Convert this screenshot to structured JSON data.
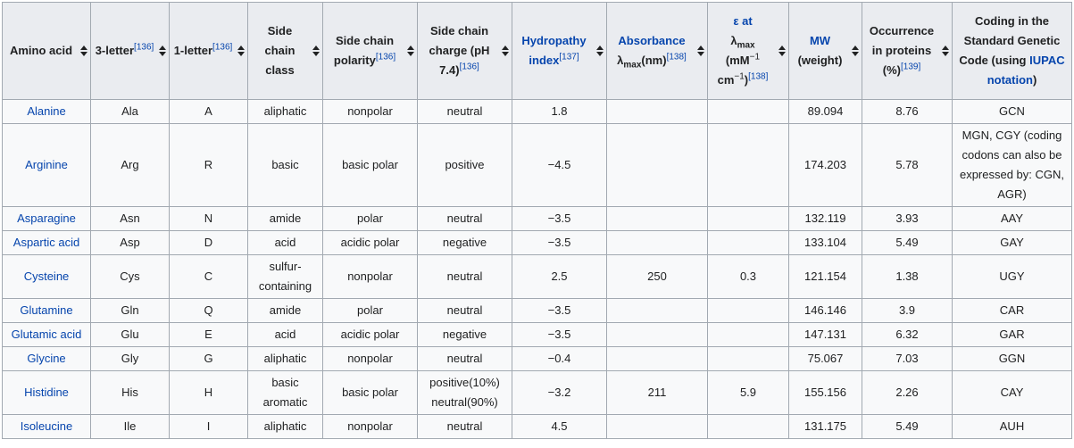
{
  "headers": {
    "amino_acid": "Amino acid",
    "three_letter": "3-letter",
    "three_letter_ref": "[136]",
    "one_letter": "1-letter",
    "one_letter_ref": "[136]",
    "side_chain_class": "Side chain class",
    "side_chain_polarity": "Side chain polarity",
    "side_chain_polarity_ref": "[136]",
    "side_chain_charge": "Side chain charge (pH 7.4)",
    "side_chain_charge_ref": "[136]",
    "hydropathy": "Hydropathy index",
    "hydropathy_ref": "[137]",
    "absorbance": "Absorbance",
    "absorbance_lambda": "λ",
    "absorbance_sub": "max",
    "absorbance_unit": "(nm)",
    "absorbance_ref": "[138]",
    "epsilon_at": "ε at",
    "epsilon_lambda": "λ",
    "epsilon_sub": "max",
    "epsilon_unit_a": "(mM",
    "epsilon_sup_a": "−1",
    "epsilon_unit_b": "cm",
    "epsilon_sup_b": "−1",
    "epsilon_unit_c": ")",
    "epsilon_ref": "[138]",
    "mw": "MW",
    "mw_sub": "(weight)",
    "occurrence": "Occurrence in proteins (%)",
    "occurrence_ref": "[139]",
    "coding_prefix": "Coding in the Standard Genetic Code (using",
    "coding_link": "IUPAC notation",
    "coding_suffix": ")"
  },
  "rows": [
    {
      "name": "Alanine",
      "three": "Ala",
      "one": "A",
      "class": "aliphatic",
      "polarity": "nonpolar",
      "charge": "neutral",
      "hydropathy": "1.8",
      "abs": "",
      "eps": "",
      "mw": "89.094",
      "occ": "8.76",
      "coding": "GCN"
    },
    {
      "name": "Arginine",
      "three": "Arg",
      "one": "R",
      "class": "basic",
      "polarity": "basic polar",
      "charge": "positive",
      "hydropathy": "−4.5",
      "abs": "",
      "eps": "",
      "mw": "174.203",
      "occ": "5.78",
      "coding": "MGN, CGY (coding codons can also be expressed by: CGN, AGR)"
    },
    {
      "name": "Asparagine",
      "three": "Asn",
      "one": "N",
      "class": "amide",
      "polarity": "polar",
      "charge": "neutral",
      "hydropathy": "−3.5",
      "abs": "",
      "eps": "",
      "mw": "132.119",
      "occ": "3.93",
      "coding": "AAY"
    },
    {
      "name": "Aspartic acid",
      "three": "Asp",
      "one": "D",
      "class": "acid",
      "polarity": "acidic polar",
      "charge": "negative",
      "hydropathy": "−3.5",
      "abs": "",
      "eps": "",
      "mw": "133.104",
      "occ": "5.49",
      "coding": "GAY"
    },
    {
      "name": "Cysteine",
      "three": "Cys",
      "one": "C",
      "class": "sulfur-containing",
      "polarity": "nonpolar",
      "charge": "neutral",
      "hydropathy": "2.5",
      "abs": "250",
      "eps": "0.3",
      "mw": "121.154",
      "occ": "1.38",
      "coding": "UGY"
    },
    {
      "name": "Glutamine",
      "three": "Gln",
      "one": "Q",
      "class": "amide",
      "polarity": "polar",
      "charge": "neutral",
      "hydropathy": "−3.5",
      "abs": "",
      "eps": "",
      "mw": "146.146",
      "occ": "3.9",
      "coding": "CAR"
    },
    {
      "name": "Glutamic acid",
      "three": "Glu",
      "one": "E",
      "class": "acid",
      "polarity": "acidic polar",
      "charge": "negative",
      "hydropathy": "−3.5",
      "abs": "",
      "eps": "",
      "mw": "147.131",
      "occ": "6.32",
      "coding": "GAR"
    },
    {
      "name": "Glycine",
      "three": "Gly",
      "one": "G",
      "class": "aliphatic",
      "polarity": "nonpolar",
      "charge": "neutral",
      "hydropathy": "−0.4",
      "abs": "",
      "eps": "",
      "mw": "75.067",
      "occ": "7.03",
      "coding": "GGN"
    },
    {
      "name": "Histidine",
      "three": "His",
      "one": "H",
      "class": "basic aromatic",
      "polarity": "basic polar",
      "charge": "positive(10%) neutral(90%)",
      "hydropathy": "−3.2",
      "abs": "211",
      "eps": "5.9",
      "mw": "155.156",
      "occ": "2.26",
      "coding": "CAY"
    },
    {
      "name": "Isoleucine",
      "three": "Ile",
      "one": "I",
      "class": "aliphatic",
      "polarity": "nonpolar",
      "charge": "neutral",
      "hydropathy": "4.5",
      "abs": "",
      "eps": "",
      "mw": "131.175",
      "occ": "5.49",
      "coding": "AUH"
    }
  ]
}
